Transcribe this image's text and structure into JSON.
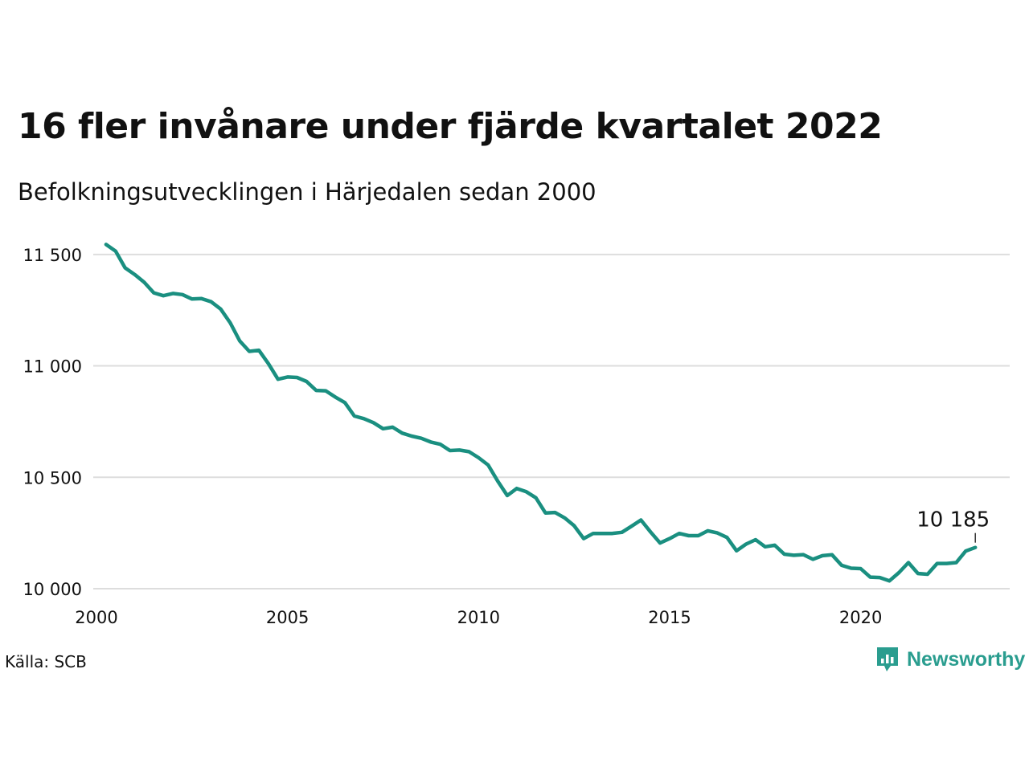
{
  "title": "16 fler invånare under fjärde kvartalet 2022",
  "subtitle": "Befolkningsutvecklingen i Härjedalen sedan 2000",
  "source": "Källa: SCB",
  "brand": {
    "name": "Newsworthy",
    "icon": "newsworthy-logo-icon"
  },
  "colors": {
    "line": "#1a8f80",
    "grid": "#dddddd",
    "brand": "#2a9d8f"
  },
  "chart_data": {
    "type": "line",
    "title": "16 fler invånare under fjärde kvartalet 2022",
    "subtitle": "Befolkningsutvecklingen i Härjedalen sedan 2000",
    "xlabel": "",
    "ylabel": "",
    "xlim": [
      2000,
      2023.9
    ],
    "ylim": [
      10000,
      11640
    ],
    "grid": "horizontal",
    "legend": "none",
    "x_ticks": [
      {
        "value": 2000,
        "label": "2000"
      },
      {
        "value": 2005,
        "label": "2005"
      },
      {
        "value": 2010,
        "label": "2010"
      },
      {
        "value": 2015,
        "label": "2015"
      },
      {
        "value": 2020,
        "label": "2020"
      }
    ],
    "y_ticks": [
      {
        "value": 10000,
        "label": "10 000"
      },
      {
        "value": 10500,
        "label": "10 500"
      },
      {
        "value": 11000,
        "label": "11 000"
      },
      {
        "value": 11500,
        "label": "11 500"
      }
    ],
    "end_label": "10 185",
    "series": [
      {
        "values": [
          [
            2000.25,
            11545
          ],
          [
            2000.5,
            11515
          ],
          [
            2000.75,
            11440
          ],
          [
            2001.0,
            11410
          ],
          [
            2001.25,
            11375
          ],
          [
            2001.5,
            11328
          ],
          [
            2001.75,
            11315
          ],
          [
            2002.0,
            11325
          ],
          [
            2002.25,
            11320
          ],
          [
            2002.5,
            11300
          ],
          [
            2002.75,
            11302
          ],
          [
            2003.0,
            11288
          ],
          [
            2003.25,
            11255
          ],
          [
            2003.5,
            11193
          ],
          [
            2003.75,
            11112
          ],
          [
            2004.0,
            11065
          ],
          [
            2004.25,
            11070
          ],
          [
            2004.5,
            11010
          ],
          [
            2004.75,
            10940
          ],
          [
            2005.0,
            10950
          ],
          [
            2005.25,
            10948
          ],
          [
            2005.5,
            10930
          ],
          [
            2005.75,
            10890
          ],
          [
            2006.0,
            10888
          ],
          [
            2006.25,
            10860
          ],
          [
            2006.5,
            10835
          ],
          [
            2006.75,
            10775
          ],
          [
            2007.0,
            10763
          ],
          [
            2007.25,
            10745
          ],
          [
            2007.5,
            10718
          ],
          [
            2007.75,
            10725
          ],
          [
            2008.0,
            10698
          ],
          [
            2008.25,
            10685
          ],
          [
            2008.5,
            10675
          ],
          [
            2008.75,
            10658
          ],
          [
            2009.0,
            10648
          ],
          [
            2009.25,
            10620
          ],
          [
            2009.5,
            10622
          ],
          [
            2009.75,
            10615
          ],
          [
            2010.0,
            10588
          ],
          [
            2010.25,
            10555
          ],
          [
            2010.5,
            10483
          ],
          [
            2010.75,
            10418
          ],
          [
            2011.0,
            10450
          ],
          [
            2011.25,
            10435
          ],
          [
            2011.5,
            10408
          ],
          [
            2011.75,
            10340
          ],
          [
            2012.0,
            10342
          ],
          [
            2012.25,
            10318
          ],
          [
            2012.5,
            10283
          ],
          [
            2012.75,
            10225
          ],
          [
            2013.0,
            10248
          ],
          [
            2013.25,
            10248
          ],
          [
            2013.5,
            10248
          ],
          [
            2013.75,
            10253
          ],
          [
            2014.0,
            10280
          ],
          [
            2014.25,
            10308
          ],
          [
            2014.5,
            10255
          ],
          [
            2014.75,
            10205
          ],
          [
            2015.0,
            10225
          ],
          [
            2015.25,
            10248
          ],
          [
            2015.5,
            10238
          ],
          [
            2015.75,
            10238
          ],
          [
            2016.0,
            10260
          ],
          [
            2016.25,
            10250
          ],
          [
            2016.5,
            10230
          ],
          [
            2016.75,
            10170
          ],
          [
            2017.0,
            10200
          ],
          [
            2017.25,
            10220
          ],
          [
            2017.5,
            10188
          ],
          [
            2017.75,
            10195
          ],
          [
            2018.0,
            10155
          ],
          [
            2018.25,
            10150
          ],
          [
            2018.5,
            10153
          ],
          [
            2018.75,
            10132
          ],
          [
            2019.0,
            10148
          ],
          [
            2019.25,
            10152
          ],
          [
            2019.5,
            10105
          ],
          [
            2019.75,
            10092
          ],
          [
            2020.0,
            10090
          ],
          [
            2020.25,
            10052
          ],
          [
            2020.5,
            10050
          ],
          [
            2020.75,
            10035
          ],
          [
            2021.0,
            10072
          ],
          [
            2021.25,
            10117
          ],
          [
            2021.5,
            10068
          ],
          [
            2021.75,
            10065
          ],
          [
            2022.0,
            10113
          ],
          [
            2022.25,
            10113
          ],
          [
            2022.5,
            10117
          ],
          [
            2022.75,
            10169
          ],
          [
            2023.0,
            10185
          ]
        ]
      }
    ]
  }
}
